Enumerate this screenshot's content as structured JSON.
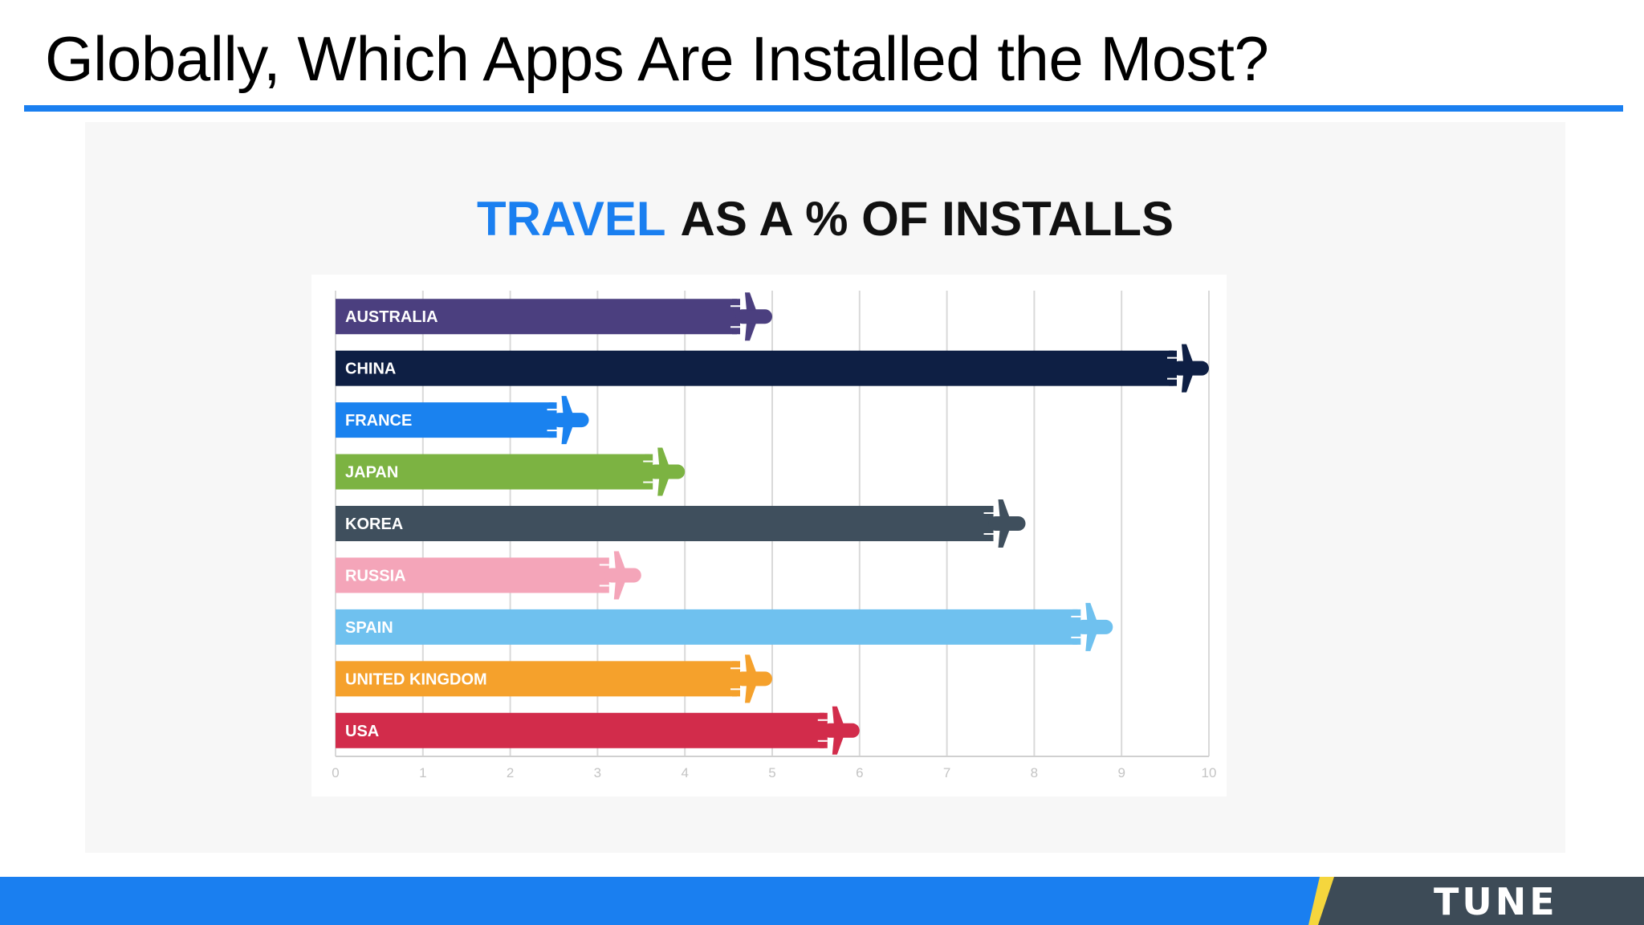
{
  "slide": {
    "title": "Globally, Which Apps Are Installed the Most?",
    "accent_color": "#1a7ff0",
    "footer_color": "#1a7ff0",
    "footer_dark_color": "#3d4b57",
    "footer_yellow_color": "#f5d63d",
    "brand": "TUNE"
  },
  "chart_title": {
    "accent_word": "TRAVEL",
    "rest": "AS A % OF INSTALLS"
  },
  "chart_data": {
    "type": "bar",
    "orientation": "horizontal",
    "title": "TRAVEL AS A % OF INSTALLS",
    "categories": [
      "AUSTRALIA",
      "CHINA",
      "FRANCE",
      "JAPAN",
      "KOREA",
      "RUSSIA",
      "SPAIN",
      "UNITED KINGDOM",
      "USA"
    ],
    "values": [
      5.0,
      10.0,
      2.9,
      4.0,
      7.9,
      3.5,
      8.9,
      5.0,
      6.0
    ],
    "colors": [
      "#4b3f7f",
      "#0e1f44",
      "#1a82ef",
      "#7cb342",
      "#3f4f5d",
      "#f4a5b9",
      "#6fc1ef",
      "#f5a12c",
      "#d22c4b"
    ],
    "xlim": [
      0,
      10
    ],
    "x_ticks": [
      0,
      1,
      2,
      3,
      4,
      5,
      6,
      7,
      8,
      9,
      10
    ],
    "grid": true,
    "xlabel": "",
    "ylabel": "",
    "marker_icon": "airplane-icon"
  }
}
